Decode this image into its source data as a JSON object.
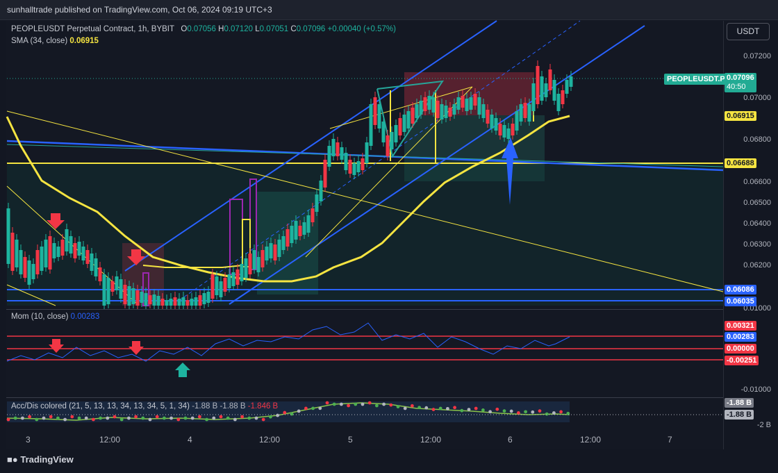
{
  "header": {
    "published": "sunhalltrade published on TradingView.com, Oct 06, 2024 09:19 UTC+3"
  },
  "main_legend": {
    "symbol": "PEOPLEUSDT Perpetual Contract, 1h, BYBIT",
    "o_label": "O",
    "o_value": "0.07056",
    "h_label": "H",
    "h_value": "0.07120",
    "l_label": "L",
    "l_value": "0.07051",
    "c_label": "C",
    "c_value": "0.07096",
    "change": "+0.00040 (+0.57%)",
    "sma_label": "SMA (34, close)",
    "sma_value": "0.06915"
  },
  "currency_button": "USDT",
  "price_axis": [
    "0.07200",
    "0.07000",
    "0.06800",
    "0.06600",
    "0.06500",
    "0.06400",
    "0.06300",
    "0.06200",
    "0.06035"
  ],
  "price_tags": {
    "pair": "PEOPLEUSDT.P",
    "last": "0.07096",
    "countdown": "40:50",
    "sma": "0.06915",
    "level1": "0.06688",
    "level2": "0.06086",
    "level3": "0.06035",
    "axis_bottom": "0.01000"
  },
  "mom_panel": {
    "label": "Mom (10, close)",
    "value": "0.00283",
    "tags": [
      "0.00321",
      "0.00283",
      "0.00000",
      "-0.00251"
    ],
    "axis_low": "-0.01000"
  },
  "acc_panel": {
    "label": "Acc/Dis colored (21, 5, 13, 13, 34, 13, 34, 5, 1, 34)",
    "v1": "-1.88 B",
    "v2": "-1.88 B",
    "v3": "-1.846 B",
    "tags": [
      "-1.88 B",
      "-1.88 B"
    ],
    "axis_low": "-2 B"
  },
  "time_axis": [
    "3",
    "12:00",
    "4",
    "12:00",
    "5",
    "12:00",
    "6",
    "12:00",
    "7"
  ],
  "footer_brand": "TradingView",
  "colors": {
    "bull": "#1eb39f",
    "bear": "#f23645",
    "sma": "#f5e441",
    "channel": "#2962ff"
  }
}
